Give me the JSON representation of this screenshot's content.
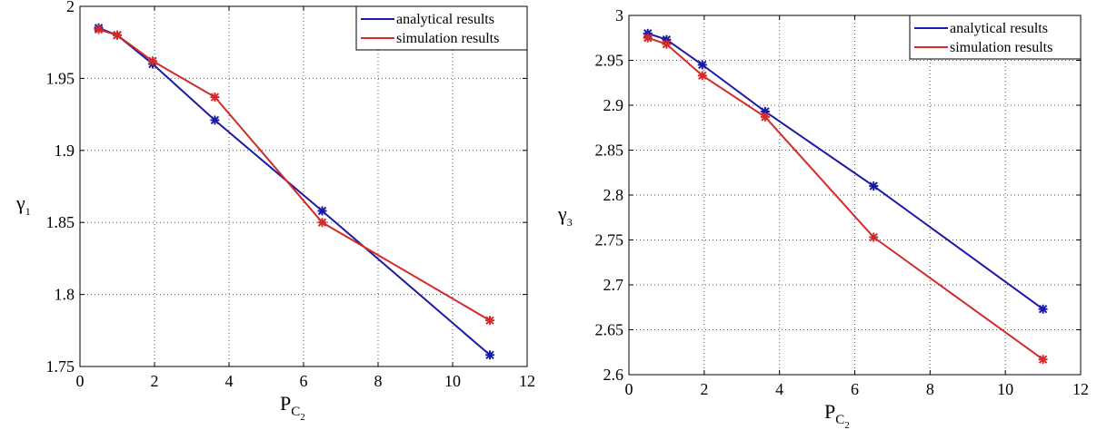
{
  "chart_data": [
    {
      "type": "line",
      "xlabel": "P",
      "xlabel_sub": "C",
      "xlabel_subsub": "2",
      "ylabel": "γ",
      "ylabel_sub": "1",
      "xlim": [
        0,
        12
      ],
      "ylim": [
        1.75,
        2.0
      ],
      "xticks": [
        0,
        2,
        4,
        6,
        8,
        10,
        12
      ],
      "xtick_labels": [
        "0",
        "2",
        "4",
        "6",
        "8",
        "10",
        "12"
      ],
      "yticks": [
        1.75,
        1.8,
        1.85,
        1.9,
        1.95,
        2.0
      ],
      "ytick_labels": [
        "1.75",
        "1.8",
        "1.85",
        "1.9",
        "1.95",
        "2"
      ],
      "grid": true,
      "legend_position": "top-right",
      "series": [
        {
          "name": "analytical results",
          "color": "#1a1aa6",
          "x": [
            0.5,
            1.0,
            1.95,
            3.62,
            6.5,
            11.0
          ],
          "y": [
            1.985,
            1.98,
            1.96,
            1.921,
            1.858,
            1.758
          ]
        },
        {
          "name": "simulation results",
          "color": "#d42a2a",
          "x": [
            0.5,
            1.0,
            1.95,
            3.62,
            6.5,
            11.0
          ],
          "y": [
            1.984,
            1.98,
            1.962,
            1.937,
            1.85,
            1.782
          ]
        }
      ]
    },
    {
      "type": "line",
      "xlabel": "P",
      "xlabel_sub": "C",
      "xlabel_subsub": "2",
      "ylabel": "γ",
      "ylabel_sub": "3",
      "xlim": [
        0,
        12
      ],
      "ylim": [
        2.6,
        3.0
      ],
      "xticks": [
        0,
        2,
        4,
        6,
        8,
        10,
        12
      ],
      "xtick_labels": [
        "0",
        "2",
        "4",
        "6",
        "8",
        "10",
        "12"
      ],
      "yticks": [
        2.6,
        2.65,
        2.7,
        2.75,
        2.8,
        2.85,
        2.9,
        2.95,
        3.0
      ],
      "ytick_labels": [
        "2.6",
        "2.65",
        "2.7",
        "2.75",
        "2.8",
        "2.85",
        "2.9",
        "2.95",
        "3"
      ],
      "grid": true,
      "legend_position": "top-right",
      "series": [
        {
          "name": "analytical results",
          "color": "#1a1aa6",
          "x": [
            0.5,
            1.0,
            1.95,
            3.62,
            6.5,
            11.0
          ],
          "y": [
            2.98,
            2.973,
            2.945,
            2.893,
            2.81,
            2.673
          ]
        },
        {
          "name": "simulation results",
          "color": "#d42a2a",
          "x": [
            0.5,
            1.0,
            1.95,
            3.62,
            6.5,
            11.0
          ],
          "y": [
            2.975,
            2.968,
            2.933,
            2.887,
            2.753,
            2.617
          ]
        }
      ]
    }
  ]
}
